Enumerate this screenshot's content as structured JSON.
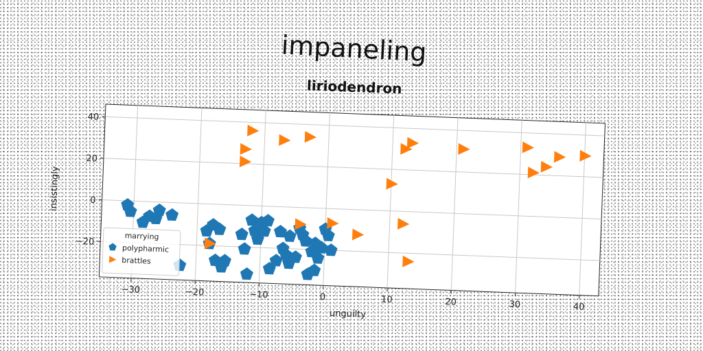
{
  "chart_data": {
    "type": "scatter",
    "title": "impaneling",
    "subtitle": "liriodendron",
    "xlabel": "unguilty",
    "ylabel": "insistingly",
    "xlim": [
      -35,
      43
    ],
    "ylim": [
      -37,
      46
    ],
    "xticks": [
      -30,
      -20,
      -10,
      0,
      10,
      20,
      30,
      40
    ],
    "yticks": [
      -20,
      0,
      20,
      40
    ],
    "grid": true,
    "legend": {
      "title": "marrying",
      "position": "lower-left"
    },
    "series": [
      {
        "name": "polypharmic",
        "color": "#1f77b4",
        "marker": "pentagon",
        "points": [
          [
            -31,
            -2
          ],
          [
            -30.5,
            -5
          ],
          [
            -28.5,
            -10
          ],
          [
            -27.5,
            -7
          ],
          [
            -26,
            -4
          ],
          [
            -26.5,
            -8
          ],
          [
            -24,
            -6
          ],
          [
            -22.5,
            -30
          ],
          [
            -18.5,
            -13
          ],
          [
            -18,
            -19
          ],
          [
            -17.5,
            -10
          ],
          [
            -16.5,
            -12
          ],
          [
            -17,
            -27
          ],
          [
            -16,
            -30
          ],
          [
            -15.5,
            -27
          ],
          [
            -12.5,
            -21
          ],
          [
            -12,
            -33
          ],
          [
            -11.5,
            -7
          ],
          [
            -11,
            -12
          ],
          [
            -10.5,
            -16
          ],
          [
            -10,
            -8
          ],
          [
            -9.5,
            -12
          ],
          [
            -9,
            -7
          ],
          [
            -8.5,
            -30
          ],
          [
            -7.5,
            -26
          ],
          [
            -7,
            -12
          ],
          [
            -6.5,
            -20
          ],
          [
            -6,
            -23
          ],
          [
            -5.5,
            -14
          ],
          [
            -5.5,
            -27
          ],
          [
            -4.5,
            -24
          ],
          [
            -4,
            -10
          ],
          [
            -3.5,
            -13
          ],
          [
            -3,
            -16
          ],
          [
            -2.5,
            -32
          ],
          [
            -2,
            -21
          ],
          [
            -1.5,
            -17
          ],
          [
            -1,
            -24
          ],
          [
            -0.5,
            -19
          ],
          [
            0,
            -10
          ],
          [
            0.5,
            -13
          ],
          [
            1,
            -20
          ],
          [
            -1.5,
            -30
          ],
          [
            -13,
            -14
          ]
        ]
      },
      {
        "name": "brattles",
        "color": "#ff7f0e",
        "marker": "triangle-right",
        "points": [
          [
            -12,
            36
          ],
          [
            -13,
            27
          ],
          [
            -13,
            21
          ],
          [
            -7,
            32
          ],
          [
            -3,
            34
          ],
          [
            -4,
            -8
          ],
          [
            1,
            -7
          ],
          [
            5,
            -12
          ],
          [
            -18,
            -19
          ],
          [
            10,
            13
          ],
          [
            12,
            30
          ],
          [
            13,
            33
          ],
          [
            12,
            -6
          ],
          [
            13,
            -24
          ],
          [
            21,
            31
          ],
          [
            31,
            33
          ],
          [
            32,
            21
          ],
          [
            34,
            24
          ],
          [
            36,
            29
          ],
          [
            40,
            30
          ]
        ]
      }
    ]
  }
}
